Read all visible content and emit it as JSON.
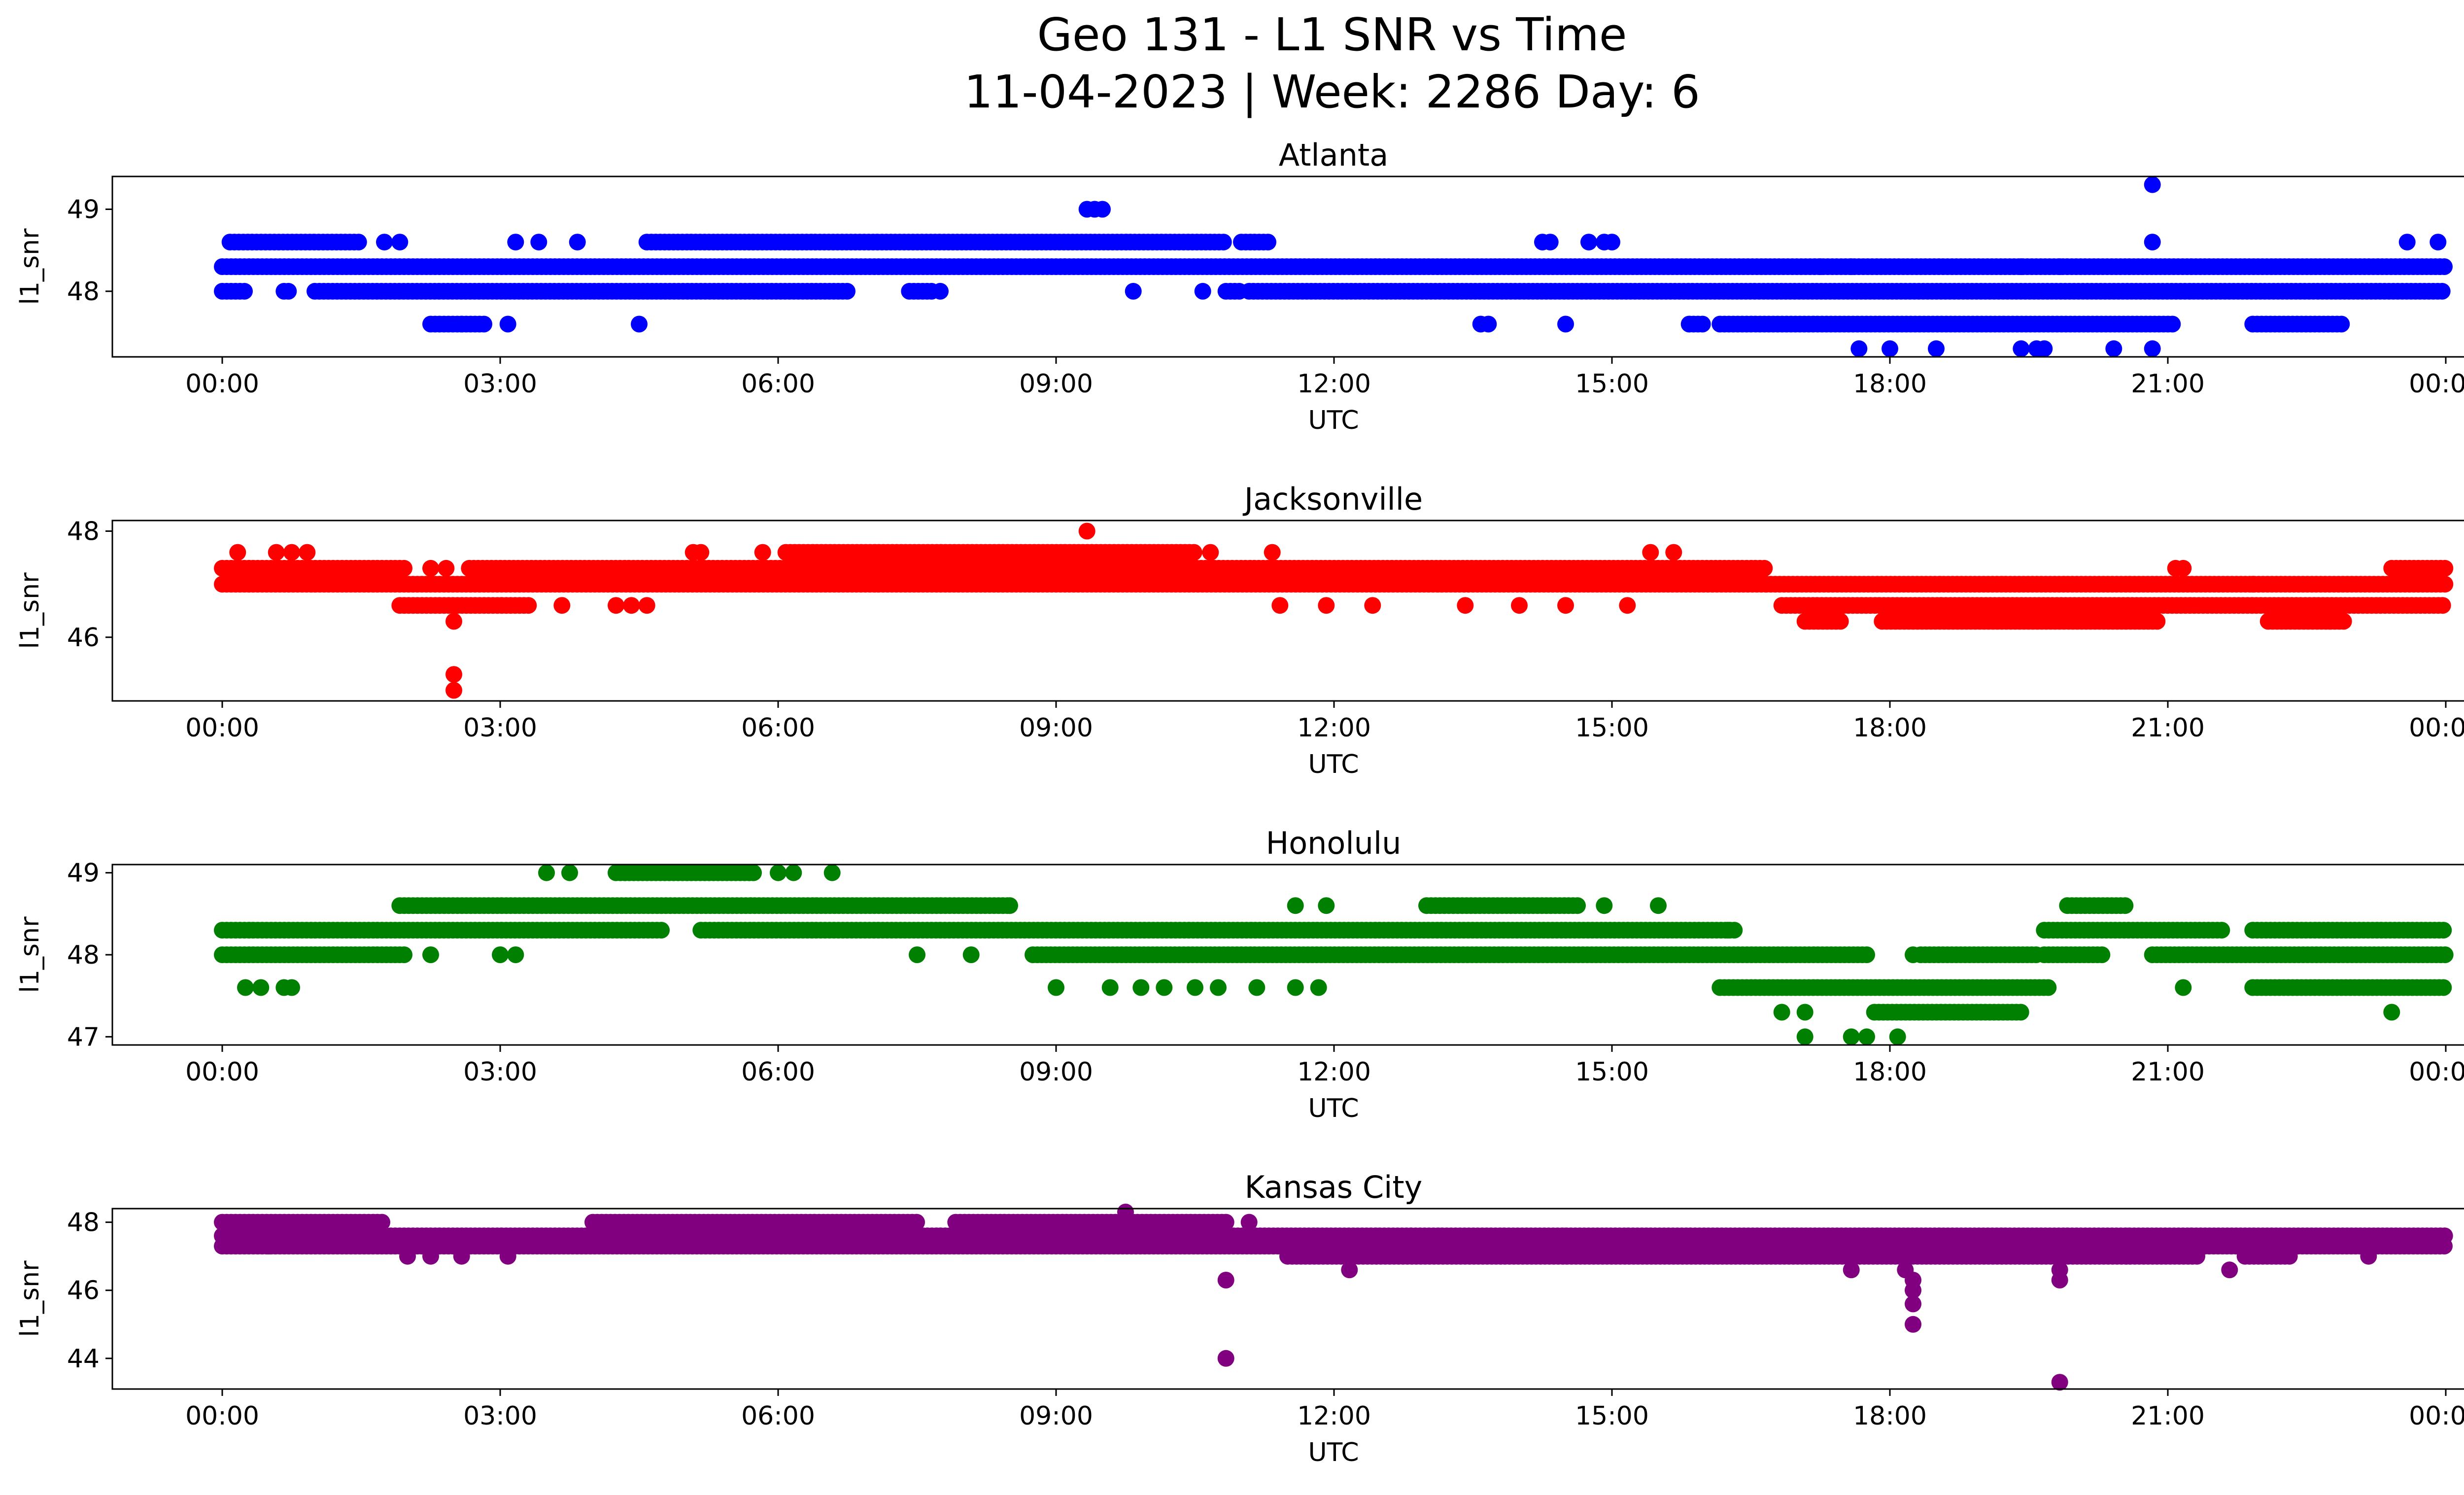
{
  "figure": {
    "title_line1": "Geo 131 - L1 SNR vs Time",
    "title_line2": "11-04-2023 | Week: 2286 Day: 6"
  },
  "chart_data": [
    {
      "type": "scatter",
      "title": "Atlanta",
      "xlabel": "UTC",
      "ylabel": "l1_snr",
      "color": "#0000ff",
      "xlim": [
        "00:00",
        "24:00"
      ],
      "x_ticks": [
        "00:00",
        "03:00",
        "06:00",
        "09:00",
        "12:00",
        "15:00",
        "18:00",
        "21:00",
        "00:00"
      ],
      "ylim": [
        47.2,
        49.4
      ],
      "y_ticks": [
        48,
        49
      ],
      "grid": false,
      "bands": [
        {
          "y": 48.3,
          "ranges": [
            [
              "00:00",
              "24:00"
            ]
          ]
        },
        {
          "y": 48.0,
          "ranges": [
            [
              "00:00",
              "00:15"
            ],
            [
              "00:40",
              "00:45"
            ],
            [
              "01:00",
              "06:45"
            ],
            [
              "07:25",
              "07:40"
            ],
            [
              "10:50",
              "11:00"
            ],
            [
              "11:05",
              "24:00"
            ]
          ]
        },
        {
          "y": 48.6,
          "ranges": [
            [
              "00:05",
              "01:30"
            ],
            [
              "04:35",
              "10:50"
            ],
            [
              "11:00",
              "11:20"
            ]
          ]
        },
        {
          "y": 47.6,
          "ranges": [
            [
              "02:15",
              "02:50"
            ],
            [
              "15:50",
              "16:00"
            ],
            [
              "16:10",
              "21:05"
            ],
            [
              "21:55",
              "22:55"
            ]
          ]
        }
      ],
      "points": [
        {
          "x": "01:45",
          "y": 48.6
        },
        {
          "x": "01:55",
          "y": 48.6
        },
        {
          "x": "03:10",
          "y": 48.6
        },
        {
          "x": "03:25",
          "y": 48.6
        },
        {
          "x": "03:50",
          "y": 48.6
        },
        {
          "x": "02:35",
          "y": 47.6
        },
        {
          "x": "03:05",
          "y": 47.6
        },
        {
          "x": "04:30",
          "y": 47.6
        },
        {
          "x": "09:20",
          "y": 49.0
        },
        {
          "x": "09:25",
          "y": 49.0
        },
        {
          "x": "09:30",
          "y": 49.0
        },
        {
          "x": "09:50",
          "y": 48.0
        },
        {
          "x": "07:45",
          "y": 48.0
        },
        {
          "x": "10:35",
          "y": 48.0
        },
        {
          "x": "13:35",
          "y": 47.6
        },
        {
          "x": "13:40",
          "y": 47.6
        },
        {
          "x": "14:15",
          "y": 48.6
        },
        {
          "x": "14:20",
          "y": 48.6
        },
        {
          "x": "14:30",
          "y": 47.6
        },
        {
          "x": "14:45",
          "y": 48.6
        },
        {
          "x": "14:55",
          "y": 48.6
        },
        {
          "x": "15:00",
          "y": 48.6
        },
        {
          "x": "17:15",
          "y": 48.3
        },
        {
          "x": "17:35",
          "y": 48.3
        },
        {
          "x": "17:40",
          "y": 47.3
        },
        {
          "x": "18:00",
          "y": 47.3
        },
        {
          "x": "18:30",
          "y": 47.3
        },
        {
          "x": "19:25",
          "y": 47.3
        },
        {
          "x": "19:35",
          "y": 47.3
        },
        {
          "x": "19:40",
          "y": 47.3
        },
        {
          "x": "20:25",
          "y": 47.3
        },
        {
          "x": "20:50",
          "y": 47.3
        },
        {
          "x": "20:50",
          "y": 49.3
        },
        {
          "x": "20:50",
          "y": 48.6
        },
        {
          "x": "19:25",
          "y": 48.3
        },
        {
          "x": "19:50",
          "y": 48.3
        },
        {
          "x": "23:35",
          "y": 48.6
        },
        {
          "x": "23:55",
          "y": 48.6
        }
      ]
    },
    {
      "type": "scatter",
      "title": "Jacksonville",
      "xlabel": "UTC",
      "ylabel": "l1_snr",
      "color": "#ff0000",
      "xlim": [
        "00:00",
        "24:00"
      ],
      "x_ticks": [
        "00:00",
        "03:00",
        "06:00",
        "09:00",
        "12:00",
        "15:00",
        "18:00",
        "21:00",
        "00:00"
      ],
      "ylim": [
        44.8,
        48.2
      ],
      "y_ticks": [
        46,
        48
      ],
      "grid": false,
      "bands": [
        {
          "y": 47.0,
          "ranges": [
            [
              "00:00",
              "16:40"
            ]
          ]
        },
        {
          "y": 47.3,
          "ranges": [
            [
              "00:00",
              "02:00"
            ],
            [
              "02:40",
              "16:40"
            ]
          ]
        },
        {
          "y": 46.6,
          "ranges": [
            [
              "01:55",
              "03:20"
            ],
            [
              "16:50",
              "24:00"
            ]
          ]
        },
        {
          "y": 47.0,
          "ranges": [
            [
              "16:40",
              "24:00"
            ]
          ]
        },
        {
          "y": 47.6,
          "ranges": [
            [
              "06:05",
              "10:30"
            ]
          ]
        },
        {
          "y": 46.3,
          "ranges": [
            [
              "17:05",
              "17:30"
            ],
            [
              "17:55",
              "20:55"
            ],
            [
              "22:05",
              "22:55"
            ]
          ]
        },
        {
          "y": 47.3,
          "ranges": [
            [
              "23:25",
              "24:00"
            ]
          ]
        }
      ],
      "points": [
        {
          "x": "00:10",
          "y": 47.6
        },
        {
          "x": "00:35",
          "y": 47.6
        },
        {
          "x": "00:45",
          "y": 47.6
        },
        {
          "x": "00:55",
          "y": 47.6
        },
        {
          "x": "02:15",
          "y": 47.3
        },
        {
          "x": "02:25",
          "y": 47.3
        },
        {
          "x": "02:30",
          "y": 46.3
        },
        {
          "x": "02:30",
          "y": 45.3
        },
        {
          "x": "02:30",
          "y": 45.0
        },
        {
          "x": "03:40",
          "y": 46.6
        },
        {
          "x": "04:15",
          "y": 46.6
        },
        {
          "x": "04:25",
          "y": 46.6
        },
        {
          "x": "04:35",
          "y": 46.6
        },
        {
          "x": "05:05",
          "y": 47.6
        },
        {
          "x": "05:10",
          "y": 47.6
        },
        {
          "x": "05:50",
          "y": 47.6
        },
        {
          "x": "09:20",
          "y": 48.0
        },
        {
          "x": "10:40",
          "y": 47.6
        },
        {
          "x": "11:20",
          "y": 47.6
        },
        {
          "x": "11:25",
          "y": 46.6
        },
        {
          "x": "11:55",
          "y": 46.6
        },
        {
          "x": "12:25",
          "y": 46.6
        },
        {
          "x": "13:25",
          "y": 46.6
        },
        {
          "x": "14:00",
          "y": 46.6
        },
        {
          "x": "14:30",
          "y": 46.6
        },
        {
          "x": "15:10",
          "y": 46.6
        },
        {
          "x": "15:25",
          "y": 47.6
        },
        {
          "x": "15:40",
          "y": 47.6
        },
        {
          "x": "21:05",
          "y": 47.3
        },
        {
          "x": "21:10",
          "y": 47.3
        },
        {
          "x": "21:55",
          "y": 47.0
        },
        {
          "x": "22:45",
          "y": 46.3
        }
      ]
    },
    {
      "type": "scatter",
      "title": "Honolulu",
      "xlabel": "UTC",
      "ylabel": "l1_snr",
      "color": "#008000",
      "xlim": [
        "00:00",
        "24:00"
      ],
      "x_ticks": [
        "00:00",
        "03:00",
        "06:00",
        "09:00",
        "12:00",
        "15:00",
        "18:00",
        "21:00",
        "00:00"
      ],
      "ylim": [
        46.9,
        49.1
      ],
      "y_ticks": [
        47,
        48,
        49
      ],
      "grid": false,
      "bands": [
        {
          "y": 48.3,
          "ranges": [
            [
              "00:00",
              "04:45"
            ],
            [
              "05:10",
              "16:20"
            ],
            [
              "19:40",
              "21:35"
            ],
            [
              "21:55",
              "24:00"
            ]
          ]
        },
        {
          "y": 48.0,
          "ranges": [
            [
              "00:00",
              "02:00"
            ],
            [
              "08:45",
              "17:45"
            ],
            [
              "18:20",
              "19:35"
            ],
            [
              "19:40",
              "20:20"
            ],
            [
              "20:50",
              "24:00"
            ]
          ]
        },
        {
          "y": 48.6,
          "ranges": [
            [
              "01:55",
              "08:30"
            ],
            [
              "13:00",
              "14:40"
            ],
            [
              "19:55",
              "20:35"
            ]
          ]
        },
        {
          "y": 49.0,
          "ranges": [
            [
              "04:15",
              "05:45"
            ]
          ]
        },
        {
          "y": 47.6,
          "ranges": [
            [
              "16:10",
              "19:45"
            ],
            [
              "21:55",
              "24:00"
            ]
          ]
        },
        {
          "y": 47.3,
          "ranges": [
            [
              "17:50",
              "19:25"
            ]
          ]
        }
      ],
      "points": [
        {
          "x": "00:15",
          "y": 47.6
        },
        {
          "x": "00:25",
          "y": 47.6
        },
        {
          "x": "00:40",
          "y": 47.6
        },
        {
          "x": "00:45",
          "y": 47.6
        },
        {
          "x": "02:15",
          "y": 48.0
        },
        {
          "x": "03:00",
          "y": 48.0
        },
        {
          "x": "03:10",
          "y": 48.0
        },
        {
          "x": "03:30",
          "y": 49.0
        },
        {
          "x": "03:45",
          "y": 49.0
        },
        {
          "x": "06:00",
          "y": 49.0
        },
        {
          "x": "06:10",
          "y": 49.0
        },
        {
          "x": "06:35",
          "y": 49.0
        },
        {
          "x": "07:30",
          "y": 48.0
        },
        {
          "x": "08:05",
          "y": 48.0
        },
        {
          "x": "08:30",
          "y": 48.6
        },
        {
          "x": "09:00",
          "y": 47.6
        },
        {
          "x": "09:35",
          "y": 47.6
        },
        {
          "x": "09:55",
          "y": 47.6
        },
        {
          "x": "10:10",
          "y": 47.6
        },
        {
          "x": "10:30",
          "y": 47.6
        },
        {
          "x": "10:45",
          "y": 47.6
        },
        {
          "x": "11:10",
          "y": 47.6
        },
        {
          "x": "11:35",
          "y": 47.6
        },
        {
          "x": "11:50",
          "y": 47.6
        },
        {
          "x": "11:35",
          "y": 48.6
        },
        {
          "x": "11:55",
          "y": 48.6
        },
        {
          "x": "14:55",
          "y": 48.6
        },
        {
          "x": "15:30",
          "y": 48.6
        },
        {
          "x": "16:15",
          "y": 48.3
        },
        {
          "x": "16:50",
          "y": 47.3
        },
        {
          "x": "17:05",
          "y": 47.3
        },
        {
          "x": "17:05",
          "y": 47.0
        },
        {
          "x": "17:35",
          "y": 47.0
        },
        {
          "x": "17:45",
          "y": 47.0
        },
        {
          "x": "18:05",
          "y": 47.0
        },
        {
          "x": "18:15",
          "y": 48.0
        },
        {
          "x": "21:10",
          "y": 47.6
        },
        {
          "x": "23:25",
          "y": 47.3
        }
      ]
    },
    {
      "type": "scatter",
      "title": "Kansas City",
      "xlabel": "UTC",
      "ylabel": "l1_snr",
      "color": "#800080",
      "xlim": [
        "00:00",
        "24:00"
      ],
      "x_ticks": [
        "00:00",
        "03:00",
        "06:00",
        "09:00",
        "12:00",
        "15:00",
        "18:00",
        "21:00",
        "00:00"
      ],
      "ylim": [
        43.1,
        48.4
      ],
      "y_ticks": [
        44,
        46,
        48
      ],
      "grid": false,
      "bands": [
        {
          "y": 47.6,
          "ranges": [
            [
              "00:00",
              "12:50"
            ],
            [
              "12:50",
              "24:00"
            ]
          ]
        },
        {
          "y": 47.3,
          "ranges": [
            [
              "00:00",
              "24:00"
            ]
          ]
        },
        {
          "y": 48.0,
          "ranges": [
            [
              "00:00",
              "01:45"
            ],
            [
              "04:00",
              "07:30"
            ],
            [
              "07:55",
              "10:50"
            ]
          ]
        },
        {
          "y": 47.0,
          "ranges": [
            [
              "11:30",
              "21:20"
            ],
            [
              "21:50",
              "22:20"
            ]
          ]
        }
      ],
      "points": [
        {
          "x": "00:30",
          "y": 47.3
        },
        {
          "x": "02:00",
          "y": 47.0
        },
        {
          "x": "02:15",
          "y": 47.0
        },
        {
          "x": "02:35",
          "y": 47.0
        },
        {
          "x": "03:05",
          "y": 47.0
        },
        {
          "x": "09:45",
          "y": 48.3
        },
        {
          "x": "10:50",
          "y": 48.0
        },
        {
          "x": "11:05",
          "y": 48.0
        },
        {
          "x": "10:50",
          "y": 46.3
        },
        {
          "x": "10:50",
          "y": 44.0
        },
        {
          "x": "12:10",
          "y": 46.6
        },
        {
          "x": "17:35",
          "y": 46.6
        },
        {
          "x": "18:10",
          "y": 46.6
        },
        {
          "x": "18:15",
          "y": 46.3
        },
        {
          "x": "18:15",
          "y": 46.0
        },
        {
          "x": "18:15",
          "y": 45.6
        },
        {
          "x": "18:15",
          "y": 45.0
        },
        {
          "x": "19:50",
          "y": 46.6
        },
        {
          "x": "19:50",
          "y": 46.3
        },
        {
          "x": "19:50",
          "y": 43.3
        },
        {
          "x": "21:40",
          "y": 46.6
        },
        {
          "x": "23:10",
          "y": 47.0
        }
      ]
    }
  ]
}
